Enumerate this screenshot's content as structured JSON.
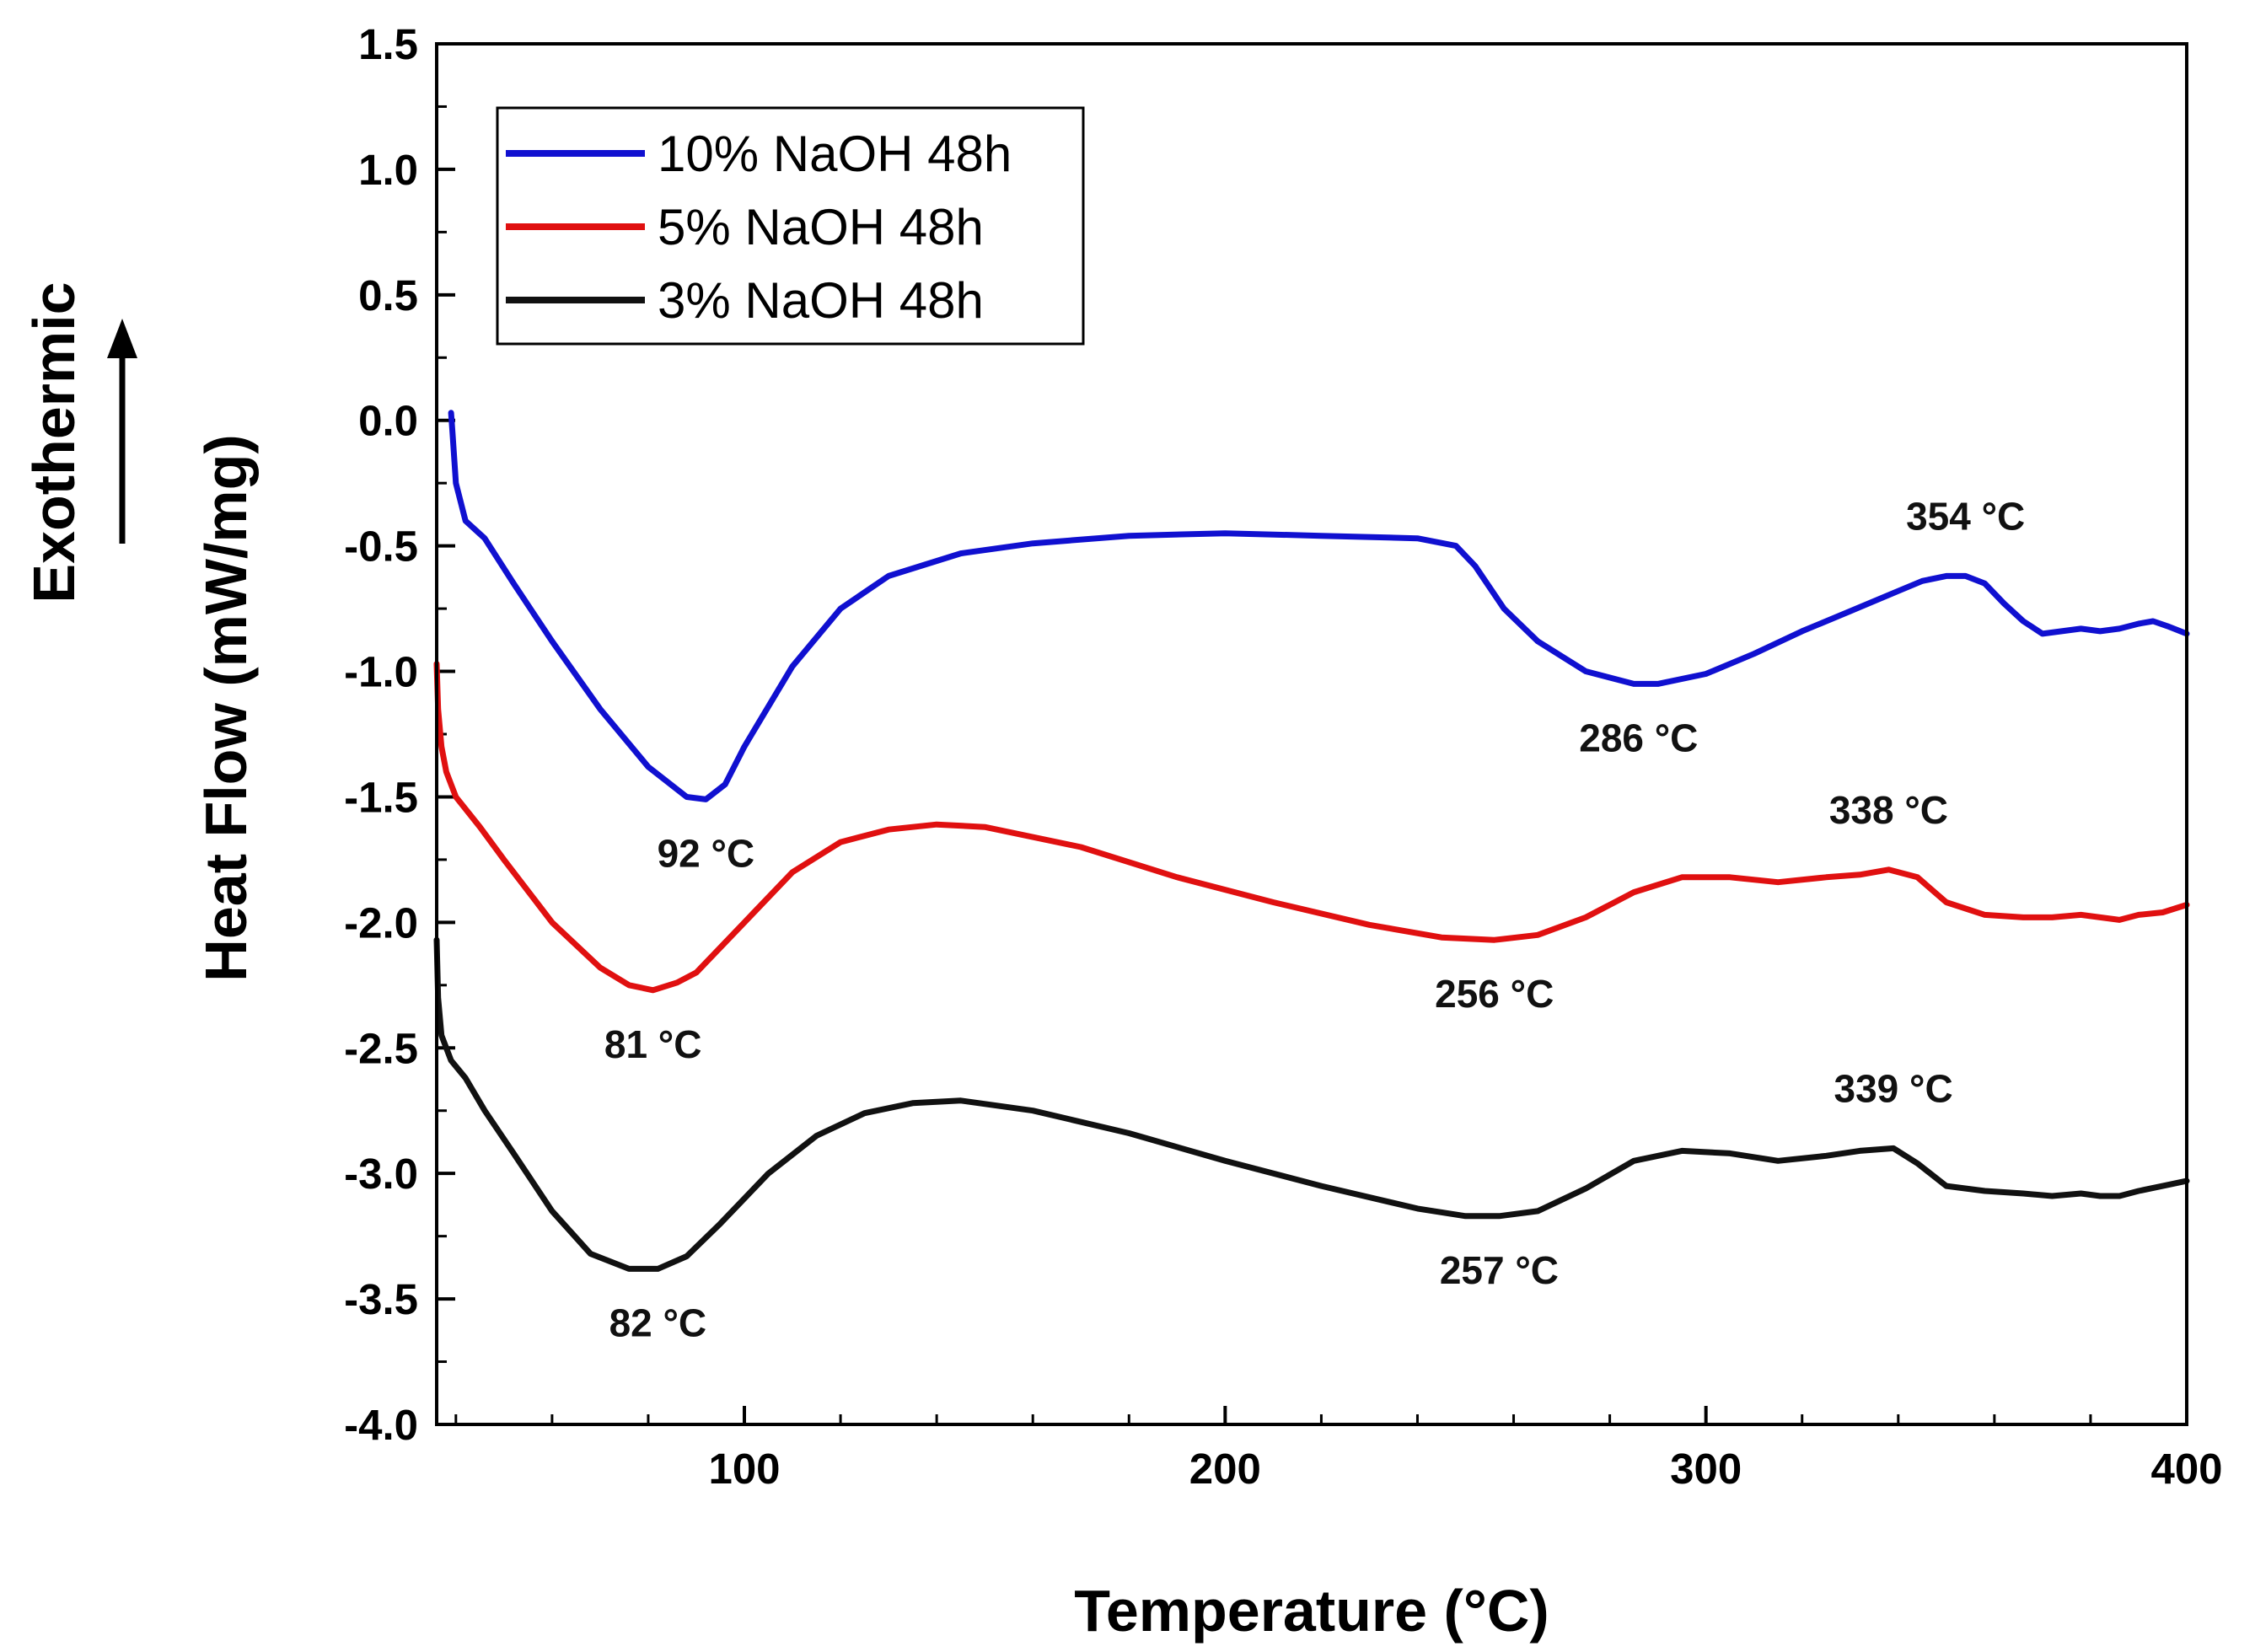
{
  "chart_data": {
    "type": "line",
    "title": "",
    "xlabel": "Temperature (°C)",
    "ylabel": "Heat Flow (mW/mg)",
    "direction_label": "Exothermic",
    "xlim": [
      36,
      400
    ],
    "ylim": [
      -4.0,
      1.5
    ],
    "xticks": [
      100,
      200,
      300,
      400
    ],
    "xtick_labels": [
      "100",
      "200",
      "300",
      "400"
    ],
    "yticks": [
      1.5,
      1.0,
      0.5,
      0.0,
      -0.5,
      -1.0,
      -1.5,
      -2.0,
      -2.5,
      -3.0,
      -3.5,
      -4.0
    ],
    "ytick_labels": [
      "1.5",
      "1.0",
      "0.5",
      "0.0",
      "-0.5",
      "-1.0",
      "-1.5",
      "-2.0",
      "-2.5",
      "-3.0",
      "-3.5",
      "-4.0"
    ],
    "grid": false,
    "legend_position": "top-left",
    "series": [
      {
        "name": "10% NaOH 48h",
        "color": "#1010d0",
        "x": [
          39,
          39.3,
          40,
          42,
          46,
          52,
          60,
          70,
          80,
          88,
          92,
          96,
          100,
          110,
          120,
          130,
          145,
          160,
          180,
          200,
          220,
          240,
          248,
          252,
          258,
          265,
          275,
          285,
          290,
          300,
          310,
          320,
          330,
          340,
          345,
          350,
          354,
          358,
          362,
          366,
          370,
          374,
          378,
          382,
          386,
          390,
          393,
          396,
          400
        ],
        "y": [
          0.03,
          -0.05,
          -0.25,
          -0.4,
          -0.47,
          -0.65,
          -0.88,
          -1.15,
          -1.38,
          -1.5,
          -1.51,
          -1.45,
          -1.3,
          -0.98,
          -0.75,
          -0.62,
          -0.53,
          -0.49,
          -0.46,
          -0.45,
          -0.46,
          -0.47,
          -0.5,
          -0.58,
          -0.75,
          -0.88,
          -1.0,
          -1.05,
          -1.05,
          -1.01,
          -0.93,
          -0.84,
          -0.76,
          -0.68,
          -0.64,
          -0.62,
          -0.62,
          -0.65,
          -0.73,
          -0.8,
          -0.85,
          -0.84,
          -0.83,
          -0.84,
          -0.83,
          -0.81,
          -0.8,
          -0.82,
          -0.85
        ]
      },
      {
        "name": "5% NaOH 48h",
        "color": "#e01010",
        "x": [
          36,
          36.3,
          37,
          38,
          40,
          45,
          50,
          60,
          70,
          76,
          81,
          86,
          90,
          100,
          110,
          120,
          130,
          140,
          150,
          170,
          190,
          210,
          230,
          245,
          256,
          265,
          275,
          285,
          295,
          305,
          315,
          325,
          332,
          338,
          344,
          350,
          358,
          366,
          372,
          378,
          382,
          386,
          390,
          395,
          400
        ],
        "y": [
          -0.97,
          -1.15,
          -1.3,
          -1.4,
          -1.5,
          -1.62,
          -1.75,
          -2.0,
          -2.18,
          -2.25,
          -2.27,
          -2.24,
          -2.2,
          -2.0,
          -1.8,
          -1.68,
          -1.63,
          -1.61,
          -1.62,
          -1.7,
          -1.82,
          -1.92,
          -2.01,
          -2.06,
          -2.07,
          -2.05,
          -1.98,
          -1.88,
          -1.82,
          -1.82,
          -1.84,
          -1.82,
          -1.81,
          -1.79,
          -1.82,
          -1.92,
          -1.97,
          -1.98,
          -1.98,
          -1.97,
          -1.98,
          -1.99,
          -1.97,
          -1.96,
          -1.93
        ]
      },
      {
        "name": "3% NaOH 48h",
        "color": "#111111",
        "x": [
          36,
          36.3,
          37,
          39,
          42,
          46,
          52,
          60,
          68,
          76,
          82,
          88,
          95,
          105,
          115,
          125,
          135,
          145,
          160,
          180,
          200,
          220,
          240,
          250,
          257,
          265,
          275,
          285,
          295,
          305,
          315,
          325,
          332,
          339,
          344,
          350,
          358,
          366,
          372,
          378,
          382,
          386,
          390,
          395,
          400
        ],
        "y": [
          -2.07,
          -2.3,
          -2.45,
          -2.55,
          -2.62,
          -2.75,
          -2.92,
          -3.15,
          -3.32,
          -3.38,
          -3.38,
          -3.33,
          -3.2,
          -3.0,
          -2.85,
          -2.76,
          -2.72,
          -2.71,
          -2.75,
          -2.84,
          -2.95,
          -3.05,
          -3.14,
          -3.17,
          -3.17,
          -3.15,
          -3.06,
          -2.95,
          -2.91,
          -2.92,
          -2.95,
          -2.93,
          -2.91,
          -2.9,
          -2.96,
          -3.05,
          -3.07,
          -3.08,
          -3.09,
          -3.08,
          -3.09,
          -3.09,
          -3.07,
          -3.05,
          -3.03
        ]
      }
    ],
    "annotations": [
      {
        "text": "92 °C",
        "x": 92,
        "y": -1.51,
        "series": "10% NaOH 48h",
        "position": "below"
      },
      {
        "text": "286 °C",
        "x": 286,
        "y": -1.05,
        "series": "10% NaOH 48h",
        "position": "below"
      },
      {
        "text": "354 °C",
        "x": 354,
        "y": -0.62,
        "series": "10% NaOH 48h",
        "position": "above"
      },
      {
        "text": "81 °C",
        "x": 81,
        "y": -2.27,
        "series": "5% NaOH 48h",
        "position": "below"
      },
      {
        "text": "256 °C",
        "x": 256,
        "y": -2.07,
        "series": "5% NaOH 48h",
        "position": "below"
      },
      {
        "text": "338 °C",
        "x": 338,
        "y": -1.79,
        "series": "5% NaOH 48h",
        "position": "above"
      },
      {
        "text": "82 °C",
        "x": 82,
        "y": -3.38,
        "series": "3% NaOH 48h",
        "position": "below"
      },
      {
        "text": "257 °C",
        "x": 257,
        "y": -3.17,
        "series": "3% NaOH 48h",
        "position": "below"
      },
      {
        "text": "339 °C",
        "x": 339,
        "y": -2.9,
        "series": "3% NaOH 48h",
        "position": "above"
      }
    ]
  }
}
